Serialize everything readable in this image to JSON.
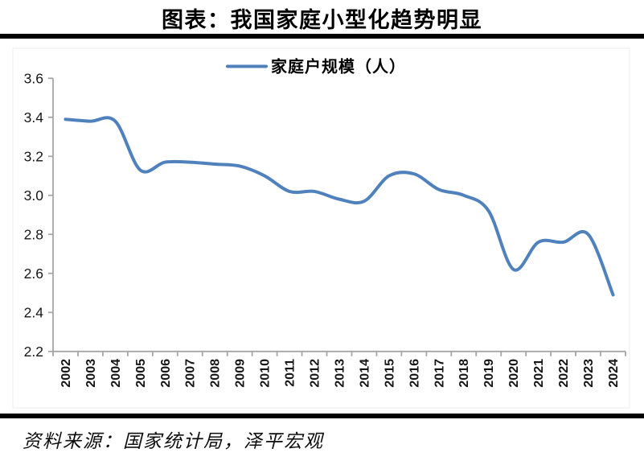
{
  "title": "图表：我国家庭小型化趋势明显",
  "source": "资料来源：国家统计局，泽平宏观",
  "legend": {
    "label": "家庭户规模（人）"
  },
  "colors": {
    "line": "#4F81BD",
    "axis": "#A6A6A6",
    "rule": "#000000",
    "chart_border": "#ECECEC",
    "tick_text": "#161616"
  },
  "chart_data": {
    "type": "line",
    "smooth": true,
    "title": "图表：我国家庭小型化趋势明显",
    "legend_entries": [
      "家庭户规模（人）"
    ],
    "legend_position": "top-center",
    "grid": false,
    "xlabel": "",
    "ylabel": "",
    "ylim": [
      2.2,
      3.6
    ],
    "ytick_step": 0.2,
    "ytick_labels": [
      "2.2",
      "2.4",
      "2.6",
      "2.8",
      "3.0",
      "3.2",
      "3.4",
      "3.6"
    ],
    "categories": [
      "2002",
      "2003",
      "2004",
      "2005",
      "2006",
      "2007",
      "2008",
      "2009",
      "2010",
      "2011",
      "2012",
      "2013",
      "2014",
      "2015",
      "2016",
      "2017",
      "2018",
      "2019",
      "2020",
      "2021",
      "2022",
      "2023",
      "2024"
    ],
    "series": [
      {
        "name": "家庭户规模（人）",
        "values": [
          3.39,
          3.38,
          3.38,
          3.13,
          3.17,
          3.17,
          3.16,
          3.15,
          3.1,
          3.02,
          3.02,
          2.98,
          2.97,
          3.1,
          3.11,
          3.03,
          3.0,
          2.92,
          2.62,
          2.76,
          2.76,
          2.8,
          2.49
        ]
      }
    ]
  }
}
